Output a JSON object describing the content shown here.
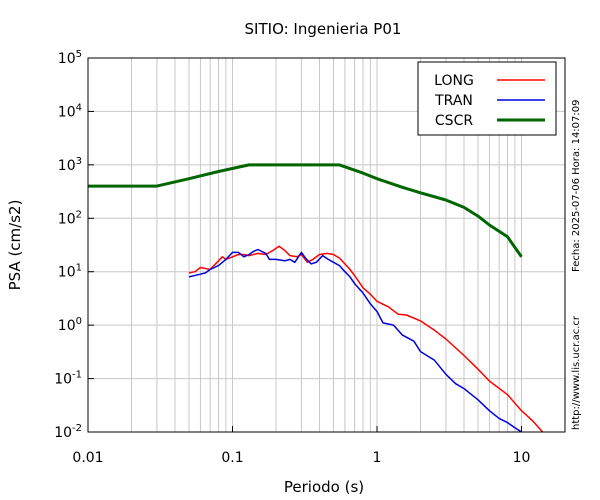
{
  "chart_data": {
    "type": "line",
    "title": "SITIO: Ingenieria P01",
    "xlabel": "Periodo (s)",
    "ylabel": "PSA (cm/s2)",
    "x_scale": "log",
    "y_scale": "log",
    "xlim": [
      0.01,
      20
    ],
    "ylim": [
      0.01,
      100000
    ],
    "x_ticks": [
      "0.01",
      "0.1",
      "1",
      "10"
    ],
    "y_ticks": [
      {
        "base": "10",
        "exp": "5"
      },
      {
        "base": "10",
        "exp": "4"
      },
      {
        "base": "10",
        "exp": "3"
      },
      {
        "base": "10",
        "exp": "2"
      },
      {
        "base": "10",
        "exp": "1"
      },
      {
        "base": "10",
        "exp": "0"
      },
      {
        "base": "10",
        "exp": "-1"
      },
      {
        "base": "10",
        "exp": "-2"
      }
    ],
    "grid": true,
    "legend_position": "top-right",
    "series": [
      {
        "name": "LONG",
        "color": "#ff0000",
        "points": [
          [
            0.05,
            9.5
          ],
          [
            0.055,
            10
          ],
          [
            0.06,
            12
          ],
          [
            0.065,
            11.5
          ],
          [
            0.07,
            11
          ],
          [
            0.08,
            16
          ],
          [
            0.085,
            19
          ],
          [
            0.09,
            17
          ],
          [
            0.1,
            19
          ],
          [
            0.11,
            21
          ],
          [
            0.12,
            21
          ],
          [
            0.13,
            20
          ],
          [
            0.15,
            22
          ],
          [
            0.17,
            21
          ],
          [
            0.19,
            25
          ],
          [
            0.21,
            30
          ],
          [
            0.23,
            25
          ],
          [
            0.25,
            20
          ],
          [
            0.28,
            19
          ],
          [
            0.3,
            21
          ],
          [
            0.33,
            15
          ],
          [
            0.36,
            17
          ],
          [
            0.4,
            21
          ],
          [
            0.45,
            22
          ],
          [
            0.5,
            21
          ],
          [
            0.55,
            18
          ],
          [
            0.6,
            14
          ],
          [
            0.65,
            11
          ],
          [
            0.7,
            8.5
          ],
          [
            0.8,
            5
          ],
          [
            0.9,
            3.8
          ],
          [
            1,
            2.8
          ],
          [
            1.2,
            2.2
          ],
          [
            1.4,
            1.6
          ],
          [
            1.6,
            1.55
          ],
          [
            2,
            1.2
          ],
          [
            2.5,
            0.8
          ],
          [
            3,
            0.55
          ],
          [
            4,
            0.27
          ],
          [
            5,
            0.15
          ],
          [
            6,
            0.09
          ],
          [
            8,
            0.05
          ],
          [
            10,
            0.025
          ],
          [
            12,
            0.016
          ],
          [
            14,
            0.01
          ]
        ]
      },
      {
        "name": "TRAN",
        "color": "#0000dd",
        "points": [
          [
            0.05,
            8
          ],
          [
            0.06,
            9
          ],
          [
            0.065,
            9.5
          ],
          [
            0.07,
            11
          ],
          [
            0.08,
            13
          ],
          [
            0.09,
            17
          ],
          [
            0.1,
            23
          ],
          [
            0.11,
            23
          ],
          [
            0.12,
            19
          ],
          [
            0.13,
            21
          ],
          [
            0.14,
            24
          ],
          [
            0.15,
            26
          ],
          [
            0.17,
            22
          ],
          [
            0.18,
            17
          ],
          [
            0.2,
            17
          ],
          [
            0.23,
            16
          ],
          [
            0.25,
            17
          ],
          [
            0.27,
            15
          ],
          [
            0.3,
            23
          ],
          [
            0.32,
            18
          ],
          [
            0.35,
            14
          ],
          [
            0.38,
            15
          ],
          [
            0.42,
            20
          ],
          [
            0.46,
            17
          ],
          [
            0.5,
            15
          ],
          [
            0.55,
            13
          ],
          [
            0.6,
            10
          ],
          [
            0.65,
            8
          ],
          [
            0.7,
            6
          ],
          [
            0.8,
            4
          ],
          [
            0.9,
            2.5
          ],
          [
            1,
            1.8
          ],
          [
            1.1,
            1.1
          ],
          [
            1.3,
            1
          ],
          [
            1.5,
            0.65
          ],
          [
            1.8,
            0.5
          ],
          [
            2,
            0.32
          ],
          [
            2.5,
            0.22
          ],
          [
            3,
            0.12
          ],
          [
            3.5,
            0.08
          ],
          [
            4,
            0.065
          ],
          [
            5,
            0.04
          ],
          [
            6,
            0.025
          ],
          [
            7,
            0.018
          ],
          [
            8,
            0.015
          ],
          [
            9,
            0.012
          ],
          [
            10,
            0.01
          ]
        ]
      },
      {
        "name": "CSCR",
        "color": "#006600",
        "points": [
          [
            0.01,
            400
          ],
          [
            0.03,
            400
          ],
          [
            0.05,
            550
          ],
          [
            0.08,
            750
          ],
          [
            0.13,
            1000
          ],
          [
            0.55,
            1000
          ],
          [
            0.8,
            700
          ],
          [
            1,
            550
          ],
          [
            1.5,
            380
          ],
          [
            2,
            300
          ],
          [
            3,
            220
          ],
          [
            4,
            160
          ],
          [
            5,
            110
          ],
          [
            6,
            75
          ],
          [
            8,
            45
          ],
          [
            10,
            19
          ]
        ]
      }
    ]
  },
  "side_text": {
    "timestamp": "Fecha: 2025-07-06  Hora: 14:07:09",
    "url": "http://www.lis.ucr.ac.cr"
  }
}
